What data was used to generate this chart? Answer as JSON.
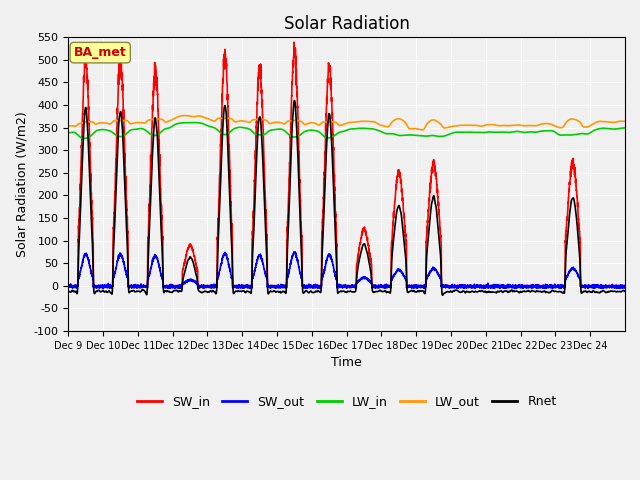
{
  "title": "Solar Radiation",
  "xlabel": "Time",
  "ylabel": "Solar Radiation (W/m2)",
  "annotation": "BA_met",
  "annotation_color": "#cc0000",
  "annotation_bg": "#ffff99",
  "ylim": [
    -100,
    550
  ],
  "yticks": [
    -100,
    -50,
    0,
    50,
    100,
    150,
    200,
    250,
    300,
    350,
    400,
    450,
    500,
    550
  ],
  "xtick_labels": [
    "Dec 9",
    "Dec 10",
    "Dec 11",
    "Dec 12",
    "Dec 13",
    "Dec 14",
    "Dec 15",
    "Dec 16",
    "Dec 17",
    "Dec 18",
    "Dec 19",
    "Dec 20",
    "Dec 21",
    "Dec 22",
    "Dec 23",
    "Dec 24"
  ],
  "legend_entries": [
    "SW_in",
    "SW_out",
    "LW_in",
    "LW_out",
    "Rnet"
  ],
  "line_colors": [
    "#ff0000",
    "#0000ff",
    "#00cc00",
    "#ff9900",
    "#000000"
  ],
  "line_widths": [
    1.2,
    1.2,
    1.2,
    1.2,
    1.2
  ],
  "plot_bg": "#f0f0f0",
  "n_points": 3840,
  "day_amplitudes": [
    500,
    500,
    475,
    90,
    510,
    480,
    520,
    490,
    125,
    250,
    270,
    0,
    0,
    0,
    270,
    0
  ]
}
